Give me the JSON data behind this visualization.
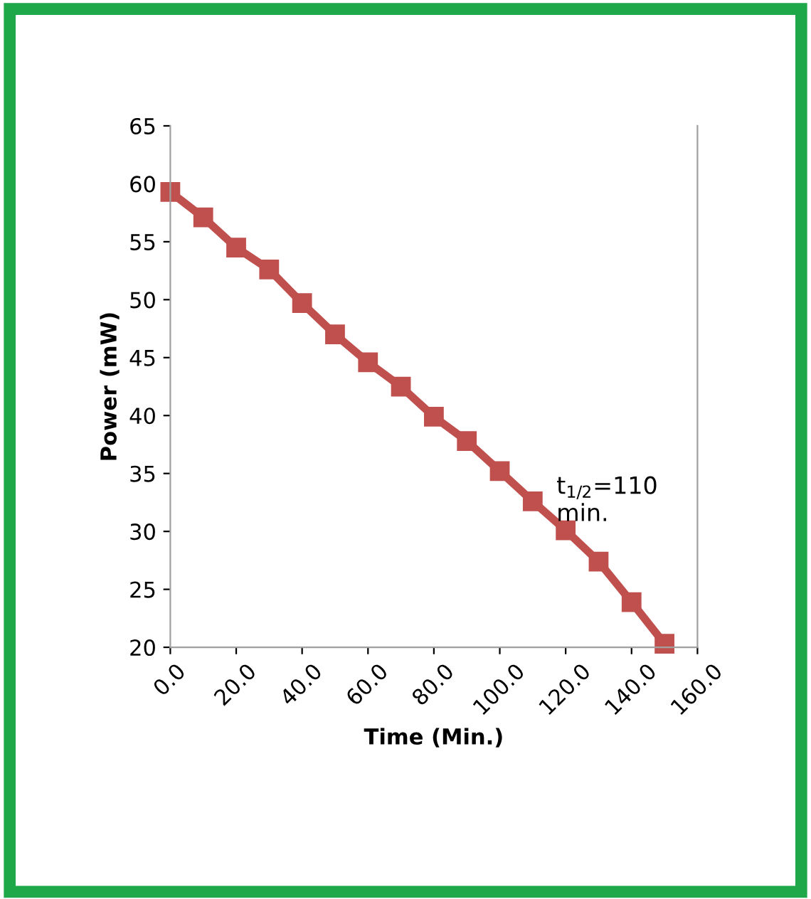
{
  "chart_data": {
    "type": "line",
    "xlabel": "Time (Min.)",
    "ylabel": "Power (mW)",
    "x": [
      0,
      10,
      20,
      30,
      40,
      50,
      60,
      70,
      80,
      90,
      100,
      110,
      120,
      130,
      140,
      150
    ],
    "series": [
      {
        "color": "#c0504d",
        "values": [
          59.3,
          57.1,
          54.5,
          52.6,
          49.7,
          47.0,
          44.6,
          42.5,
          39.9,
          37.8,
          35.2,
          32.6,
          30.1,
          27.4,
          23.9,
          20.3
        ]
      }
    ],
    "xlim": [
      0,
      160
    ],
    "ylim": [
      20,
      65
    ],
    "xticks": [
      {
        "value": 0,
        "label": "0.0"
      },
      {
        "value": 20,
        "label": "20.0"
      },
      {
        "value": 40,
        "label": "40.0"
      },
      {
        "value": 60,
        "label": "60.0"
      },
      {
        "value": 80,
        "label": "80.0"
      },
      {
        "value": 100,
        "label": "100.0"
      },
      {
        "value": 120,
        "label": "120.0"
      },
      {
        "value": 140,
        "label": "140.0"
      },
      {
        "value": 160,
        "label": "160.0"
      }
    ],
    "yticks": [
      20,
      25,
      30,
      35,
      40,
      45,
      50,
      55,
      60,
      65
    ],
    "annotations": [
      {
        "text": "t$_{1/2}$=110\nmin.",
        "x": 110,
        "y": 32.6
      }
    ],
    "marker": "square",
    "line_style": "solid",
    "grid": false
  }
}
